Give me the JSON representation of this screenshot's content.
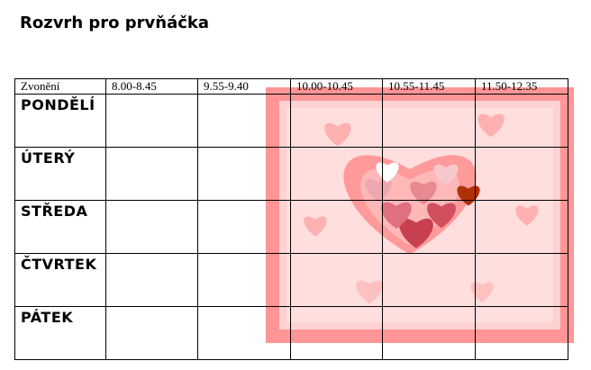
{
  "header": {
    "title": "Rozvrh pro prvňáčka"
  },
  "table": {
    "columns": [
      "Zvonění",
      "8.00-8.45",
      "9.55-9.40",
      "10.00-10.45",
      "10.55-11.45",
      "11.50-12.35"
    ],
    "days": [
      "PONDĚLÍ",
      "ÚTERÝ",
      "STŘEDA",
      "ČTVRTEK",
      "PÁTEK"
    ]
  }
}
